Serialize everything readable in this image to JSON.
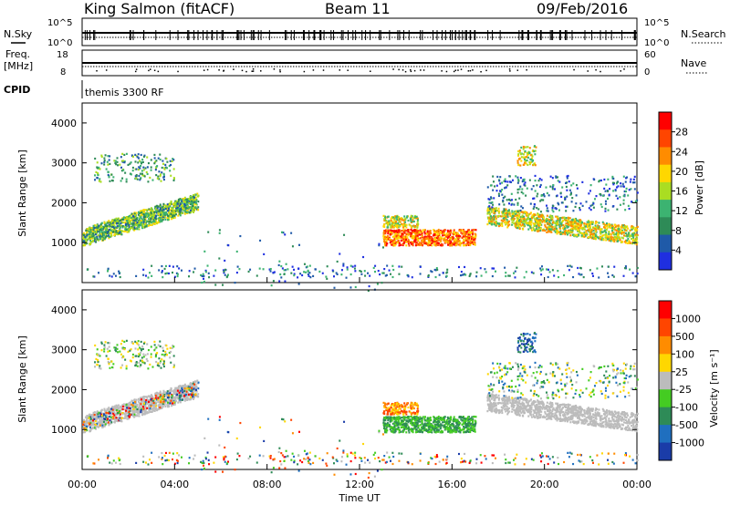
{
  "header": {
    "station": "King Salmon (fitACF)",
    "beam": "Beam 11",
    "date": "09/Feb/2016"
  },
  "param_panels": {
    "nsky_label": "N.Sky",
    "nsearch_label": "N.Search",
    "freq_label_top": "Freq.",
    "freq_label_bottom": "[MHz]",
    "nave_label": "Nave",
    "cpid_label": "CPID",
    "cpid_text": "themis 3300 RF",
    "noise_ticks_left": [
      "10^5",
      "10^0"
    ],
    "noise_ticks_right": [
      "10^5",
      "10^0"
    ],
    "freq_ticks": [
      "18",
      "8"
    ],
    "nave_ticks": [
      "60",
      "0"
    ]
  },
  "colors": {
    "power_scale": [
      "#1f2fe0",
      "#1f5aa8",
      "#2e8b57",
      "#3cb371",
      "#aadd22",
      "#ffd700",
      "#ff8c00",
      "#ff4500",
      "#ff0000"
    ],
    "velocity_scale": [
      "#1a3ca8",
      "#1f6fbf",
      "#2e8b57",
      "#44cc22",
      "#bcbcbc",
      "#ffd700",
      "#ff8c00",
      "#ff4500",
      "#ff0000"
    ]
  },
  "chart_data": [
    {
      "type": "heatmap",
      "title": "Power",
      "ylabel": "Slant Range [km]",
      "ylim": [
        0,
        4500
      ],
      "yticks": [
        "1000",
        "2000",
        "3000",
        "4000"
      ],
      "xlim": [
        0,
        24
      ],
      "colorbar_label": "Power [dB]",
      "colorbar_ticks": [
        "28",
        "24",
        "20",
        "16",
        "12",
        "8",
        "4"
      ],
      "scatter_bands": [
        {
          "t0": 0.0,
          "t1": 5.0,
          "r0": 1000,
          "r1": 2200,
          "level": "mid"
        },
        {
          "t0": 13.0,
          "t1": 17.0,
          "r0": 900,
          "r1": 1600,
          "level": "high"
        },
        {
          "t0": 17.5,
          "t1": 24.0,
          "r0": 1000,
          "r1": 1900,
          "level": "mid"
        }
      ]
    },
    {
      "type": "heatmap",
      "title": "Velocity",
      "ylabel": "Slant Range [km]",
      "xlabel": "Time UT",
      "ylim": [
        0,
        4500
      ],
      "yticks": [
        "1000",
        "2000",
        "3000",
        "4000"
      ],
      "xticks": [
        "00:00",
        "04:00",
        "08:00",
        "12:00",
        "16:00",
        "20:00",
        "00:00"
      ],
      "xlim": [
        0,
        24
      ],
      "colorbar_label": "Velocity [m s⁻¹]",
      "colorbar_ticks": [
        "1000",
        "500",
        "100",
        "25",
        "-25",
        "-100",
        "-500",
        "-1000"
      ]
    }
  ]
}
